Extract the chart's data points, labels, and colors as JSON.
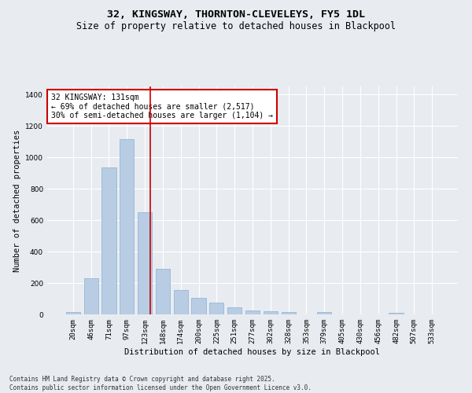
{
  "title": "32, KINGSWAY, THORNTON-CLEVELEYS, FY5 1DL",
  "subtitle": "Size of property relative to detached houses in Blackpool",
  "xlabel": "Distribution of detached houses by size in Blackpool",
  "ylabel": "Number of detached properties",
  "categories": [
    "20sqm",
    "46sqm",
    "71sqm",
    "97sqm",
    "123sqm",
    "148sqm",
    "174sqm",
    "200sqm",
    "225sqm",
    "251sqm",
    "277sqm",
    "302sqm",
    "328sqm",
    "353sqm",
    "379sqm",
    "405sqm",
    "430sqm",
    "456sqm",
    "482sqm",
    "507sqm",
    "533sqm"
  ],
  "values": [
    15,
    230,
    935,
    1115,
    650,
    290,
    155,
    105,
    75,
    45,
    25,
    20,
    15,
    0,
    15,
    0,
    0,
    0,
    10,
    0,
    0
  ],
  "bar_color": "#b8cce4",
  "bar_edge_color": "#8bafd4",
  "bar_width": 0.8,
  "ylim": [
    0,
    1450
  ],
  "yticks": [
    0,
    200,
    400,
    600,
    800,
    1000,
    1200,
    1400
  ],
  "vline_color": "#cc0000",
  "annotation_text": "32 KINGSWAY: 131sqm\n← 69% of detached houses are smaller (2,517)\n30% of semi-detached houses are larger (1,104) →",
  "annotation_box_color": "#ffffff",
  "annotation_box_edge_color": "#cc0000",
  "bg_color": "#e8ecf0",
  "grid_color": "#ffffff",
  "footer_text": "Contains HM Land Registry data © Crown copyright and database right 2025.\nContains public sector information licensed under the Open Government Licence v3.0.",
  "title_fontsize": 9.5,
  "subtitle_fontsize": 8.5,
  "axis_label_fontsize": 7.5,
  "tick_fontsize": 6.5,
  "annotation_fontsize": 7,
  "footer_fontsize": 5.5
}
